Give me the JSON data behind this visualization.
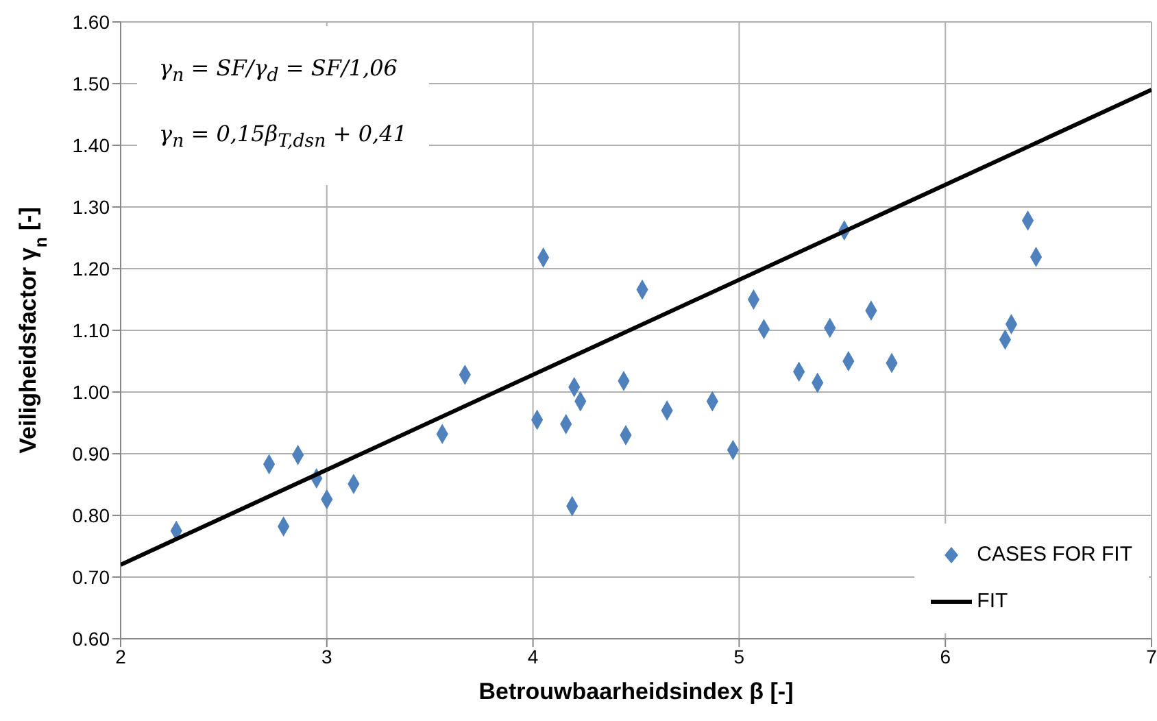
{
  "chart_data": {
    "type": "scatter",
    "xlabel": "Betrouwbaarheidsindex β [-]",
    "ylabel": "Veiligheidsfactor γ$_{n}$ [-]",
    "xlim": [
      2,
      7
    ],
    "xticks": [
      2,
      3,
      4,
      5,
      6,
      7
    ],
    "ylim": [
      0.6,
      1.6
    ],
    "yticks": [
      {
        "value": 0.6,
        "label": "0.60"
      },
      {
        "value": 0.7,
        "label": "0.70"
      },
      {
        "value": 0.8,
        "label": "0.80"
      },
      {
        "value": 0.9,
        "label": "0.90"
      },
      {
        "value": 1.0,
        "label": "1.00"
      },
      {
        "value": 1.1,
        "label": "1.10"
      },
      {
        "value": 1.2,
        "label": "1.20"
      },
      {
        "value": 1.3,
        "label": "1.30"
      },
      {
        "value": 1.4,
        "label": "1.40"
      },
      {
        "value": 1.5,
        "label": "1.50"
      },
      {
        "value": 1.6,
        "label": "1.60"
      }
    ],
    "grid": true,
    "legend": "bottom right",
    "marker": "diamond",
    "annotations": [
      "γ$_{n}$ = SF/γ$_{d}$ = SF/1,06",
      "γ$_{n}$ = 0,15β$_{T,dsn}$ + 0,41"
    ],
    "series": [
      {
        "name": "CASES FOR FIT",
        "color": "#4f81bd",
        "x": [
          2.27,
          2.72,
          2.79,
          2.86,
          2.95,
          3.0,
          3.13,
          3.56,
          3.67,
          4.02,
          4.05,
          4.16,
          4.19,
          4.2,
          4.23,
          4.44,
          4.45,
          4.53,
          4.65,
          4.87,
          4.97,
          5.07,
          5.12,
          5.29,
          5.38,
          5.44,
          5.51,
          5.53,
          5.64,
          5.74,
          6.29,
          6.32,
          6.4,
          6.44
        ],
        "values": [
          0.775,
          0.883,
          0.782,
          0.898,
          0.86,
          0.826,
          0.851,
          0.932,
          1.028,
          0.955,
          1.218,
          0.948,
          0.815,
          1.008,
          0.985,
          1.018,
          0.93,
          1.166,
          0.97,
          0.985,
          0.906,
          1.15,
          1.102,
          1.033,
          1.015,
          1.104,
          1.262,
          1.05,
          1.132,
          1.047,
          1.085,
          1.11,
          1.278,
          1.219
        ]
      },
      {
        "name": "FIT",
        "type": "line",
        "color": "#000000",
        "marker": "none",
        "line_style": "solid",
        "x": [
          2,
          7
        ],
        "values": [
          0.72,
          1.49
        ]
      }
    ]
  }
}
